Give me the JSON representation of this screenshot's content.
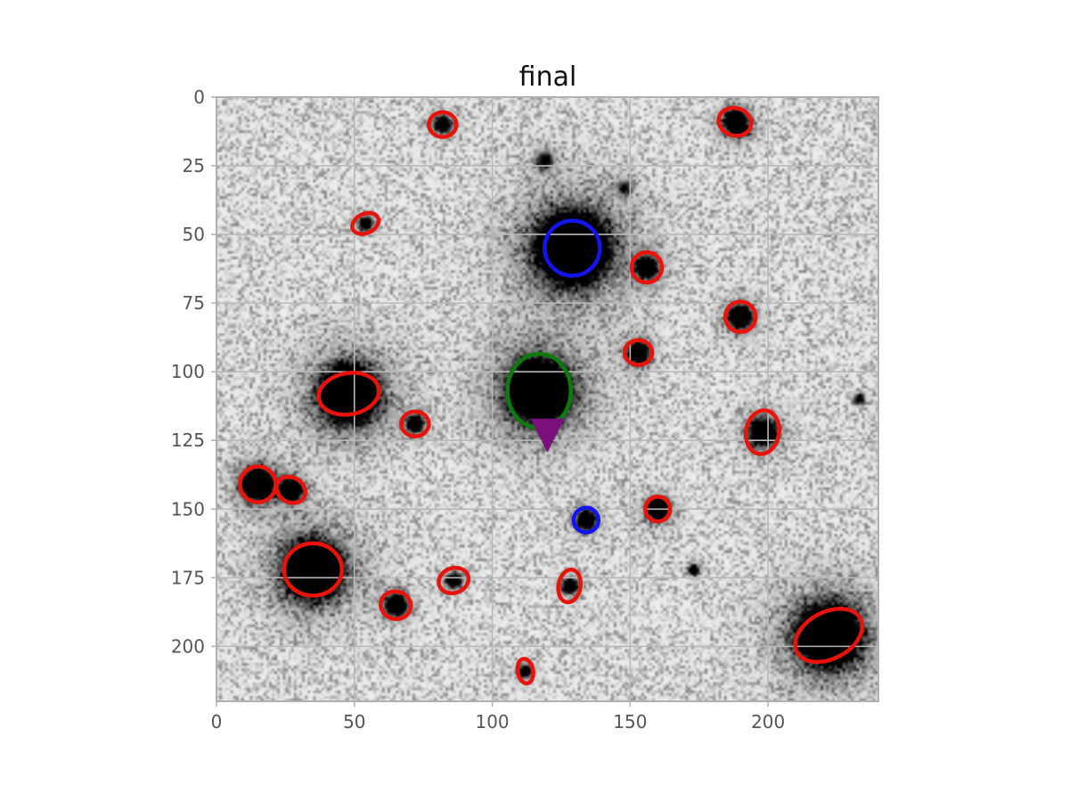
{
  "chart_data": {
    "type": "scatter",
    "title": "final",
    "xlabel": "",
    "ylabel": "",
    "xlim": [
      0,
      240
    ],
    "ylim": [
      220,
      0
    ],
    "x_ticks": [
      0,
      50,
      100,
      150,
      200
    ],
    "y_ticks": [
      0,
      25,
      50,
      75,
      100,
      125,
      150,
      175,
      200
    ],
    "grid": true,
    "background": "grayscale astronomical image (inverted, dark sources on light noisy field)",
    "sources": [
      {
        "x": 129,
        "y": 55,
        "r": 7,
        "peak": 1.0
      },
      {
        "x": 117,
        "y": 107,
        "r": 6,
        "peak": 1.0
      },
      {
        "x": 48,
        "y": 108,
        "r": 5.5,
        "peak": 1.0
      },
      {
        "x": 35,
        "y": 172,
        "r": 5.5,
        "peak": 1.0
      },
      {
        "x": 222,
        "y": 196,
        "r": 6,
        "peak": 1.0
      },
      {
        "x": 15,
        "y": 141,
        "r": 3,
        "peak": 0.9
      },
      {
        "x": 198,
        "y": 122,
        "r": 2.5,
        "peak": 0.9
      },
      {
        "x": 188,
        "y": 9,
        "r": 2.2,
        "peak": 0.85
      },
      {
        "x": 190,
        "y": 80,
        "r": 2.2,
        "peak": 0.85
      },
      {
        "x": 156,
        "y": 62,
        "r": 2,
        "peak": 0.8
      },
      {
        "x": 153,
        "y": 93,
        "r": 2,
        "peak": 0.8
      },
      {
        "x": 160,
        "y": 150,
        "r": 2,
        "peak": 0.8
      },
      {
        "x": 134,
        "y": 154,
        "r": 1.8,
        "peak": 0.8
      },
      {
        "x": 82,
        "y": 10,
        "r": 1.6,
        "peak": 0.7
      },
      {
        "x": 72,
        "y": 119,
        "r": 1.6,
        "peak": 0.7
      },
      {
        "x": 65,
        "y": 185,
        "r": 2,
        "peak": 0.8
      },
      {
        "x": 27,
        "y": 143,
        "r": 2,
        "peak": 0.75
      },
      {
        "x": 86,
        "y": 176,
        "r": 1.5,
        "peak": 0.6
      },
      {
        "x": 128,
        "y": 178,
        "r": 1.5,
        "peak": 0.65
      },
      {
        "x": 54,
        "y": 46,
        "r": 1.4,
        "peak": 0.55
      },
      {
        "x": 112,
        "y": 209,
        "r": 1.3,
        "peak": 0.55
      },
      {
        "x": 119,
        "y": 23,
        "r": 1.8,
        "peak": 0.35
      },
      {
        "x": 148,
        "y": 33,
        "r": 1.5,
        "peak": 0.3
      },
      {
        "x": 191,
        "y": 12,
        "r": 1,
        "peak": 0.8
      },
      {
        "x": 173,
        "y": 172,
        "r": 1,
        "peak": 0.6
      },
      {
        "x": 233,
        "y": 110,
        "r": 1,
        "peak": 0.5
      }
    ],
    "ellipses": [
      {
        "group": "red",
        "x": 48,
        "y": 108,
        "rx": 11,
        "ry": 7.5,
        "angle": -10
      },
      {
        "group": "red",
        "x": 35,
        "y": 172,
        "rx": 10.5,
        "ry": 9.5,
        "angle": 0
      },
      {
        "group": "red",
        "x": 222,
        "y": 196,
        "rx": 13,
        "ry": 8.5,
        "angle": -28
      },
      {
        "group": "red",
        "x": 15,
        "y": 141,
        "rx": 6.5,
        "ry": 6.5,
        "angle": 0
      },
      {
        "group": "red",
        "x": 27,
        "y": 143,
        "rx": 5.5,
        "ry": 4.5,
        "angle": 30
      },
      {
        "group": "red",
        "x": 198,
        "y": 122,
        "rx": 6,
        "ry": 8,
        "angle": 10
      },
      {
        "group": "red",
        "x": 188,
        "y": 9,
        "rx": 6,
        "ry": 5,
        "angle": 15
      },
      {
        "group": "red",
        "x": 190,
        "y": 80,
        "rx": 5.5,
        "ry": 5.5,
        "angle": 0
      },
      {
        "group": "red",
        "x": 156,
        "y": 62,
        "rx": 5.5,
        "ry": 5.5,
        "angle": 0
      },
      {
        "group": "red",
        "x": 153,
        "y": 93,
        "rx": 5,
        "ry": 4.5,
        "angle": 0
      },
      {
        "group": "red",
        "x": 160,
        "y": 150,
        "rx": 4.5,
        "ry": 4.5,
        "angle": 0
      },
      {
        "group": "red",
        "x": 82,
        "y": 10,
        "rx": 5,
        "ry": 4.5,
        "angle": 0
      },
      {
        "group": "red",
        "x": 72,
        "y": 119,
        "rx": 5,
        "ry": 4.5,
        "angle": 0
      },
      {
        "group": "red",
        "x": 65,
        "y": 185,
        "rx": 5.5,
        "ry": 5,
        "angle": 15
      },
      {
        "group": "red",
        "x": 86,
        "y": 176,
        "rx": 5.5,
        "ry": 4.5,
        "angle": -20
      },
      {
        "group": "red",
        "x": 128,
        "y": 178,
        "rx": 4,
        "ry": 6,
        "angle": 10
      },
      {
        "group": "red",
        "x": 54,
        "y": 46,
        "rx": 5,
        "ry": 3.5,
        "angle": -25
      },
      {
        "group": "red",
        "x": 112,
        "y": 209,
        "rx": 2.8,
        "ry": 4.5,
        "angle": -10
      },
      {
        "group": "blue",
        "x": 129,
        "y": 55,
        "rx": 10,
        "ry": 10,
        "angle": 0
      },
      {
        "group": "blue",
        "x": 134,
        "y": 154,
        "rx": 4.5,
        "ry": 4.5,
        "angle": 0
      },
      {
        "group": "green",
        "x": 117,
        "y": 107,
        "rx": 11.5,
        "ry": 13.5,
        "angle": 0
      }
    ],
    "markers": [
      {
        "shape": "triangle-down",
        "x": 120,
        "y": 122,
        "color": "#7b0f7b"
      }
    ],
    "colors": {
      "red": "#e8140c",
      "blue": "#1414f0",
      "green": "#0c7a0c",
      "grid": "#b8b8b8",
      "frame": "#b0b0b0",
      "ink": "#000000"
    }
  }
}
